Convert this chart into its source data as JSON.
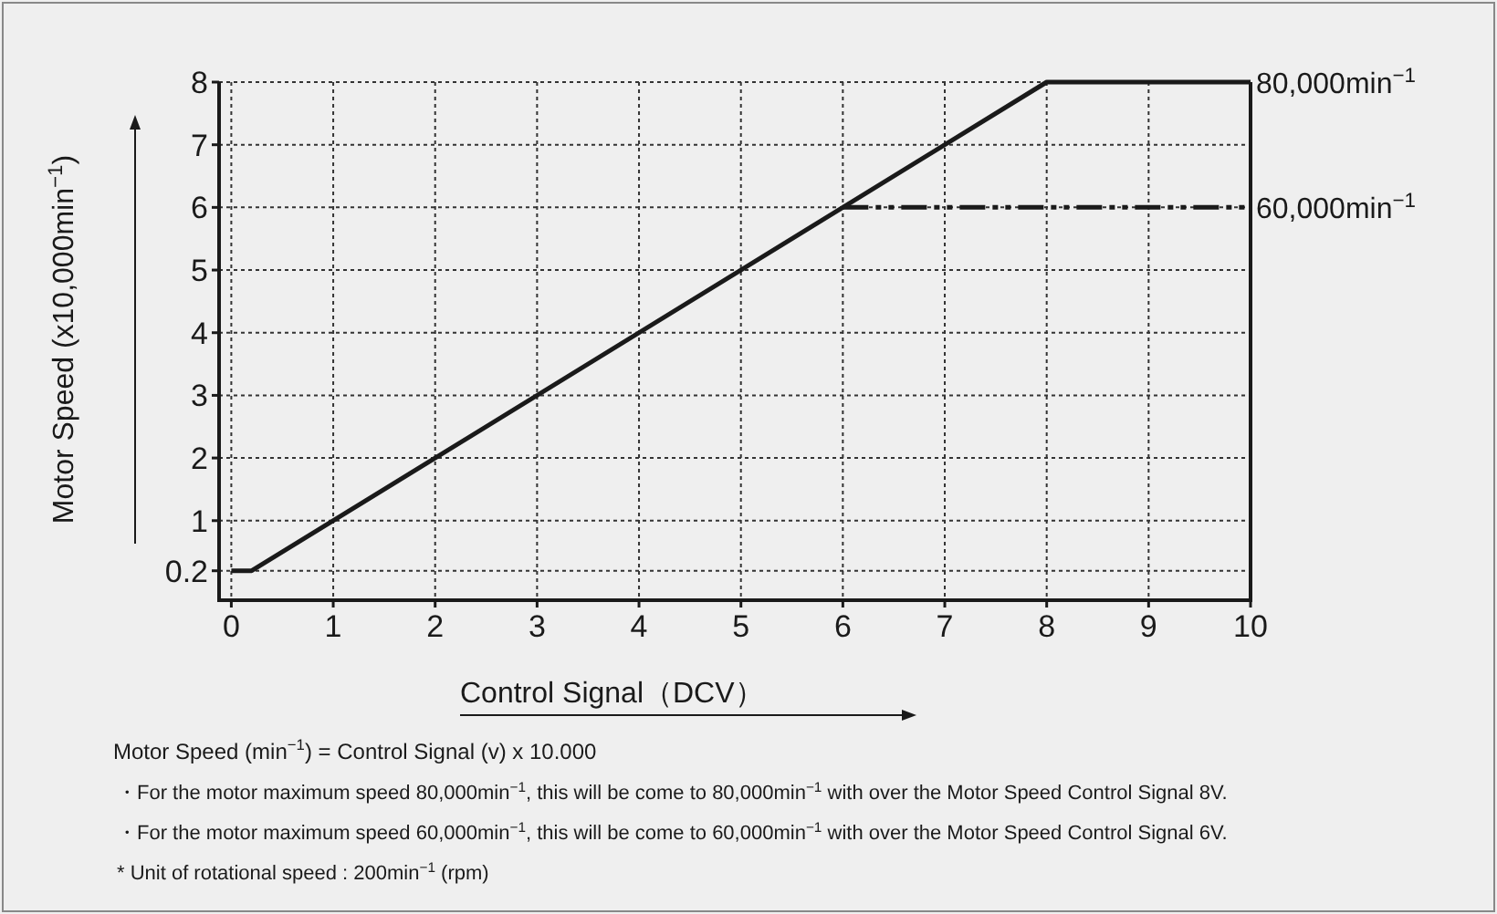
{
  "chart_data": {
    "type": "line",
    "xlabel": "Control Signal（DCV）",
    "ylabel": "Motor Speed (x10,000min$^{−1}$)",
    "xlim": [
      -0.12,
      10
    ],
    "ylim": [
      -0.27,
      8
    ],
    "xticks": [
      0,
      1,
      2,
      3,
      4,
      5,
      6,
      7,
      8,
      9,
      10
    ],
    "yticks": [
      0.2,
      1,
      2,
      3,
      4,
      5,
      6,
      7,
      8
    ],
    "grid": true,
    "marker": "none",
    "series": [
      {
        "x": [
          0,
          0.2,
          8,
          10
        ],
        "values": [
          0.2,
          0.2,
          8,
          8
        ],
        "color": "#1a1a1a",
        "line_style": "solid"
      },
      {
        "x": [
          6,
          10
        ],
        "values": [
          6,
          6
        ],
        "color": "#1a1a1a",
        "line_style": "dashdot"
      }
    ],
    "annotations": [
      {
        "text": "80,000min$^{−1}$",
        "x": 10,
        "y": 8
      },
      {
        "text": "60,000min$^{−1}$",
        "x": 10,
        "y": 6
      },
      "Motor Speed (min$^{−1}$) = Control Signal (v) x 10.000",
      "・For the motor maximum speed 80,000min$^{−1}$, this will be come to 80,000min$^{−1}$ with over the Motor Speed Control Signal 8V.",
      "・For the motor maximum speed 60,000min$^{−1}$, this will be come to 60,000min$^{−1}$ with over the Motor Speed Control Signal 6V.",
      "* Unit of rotational speed : 200min$^{−1}$ (rpm)"
    ]
  }
}
